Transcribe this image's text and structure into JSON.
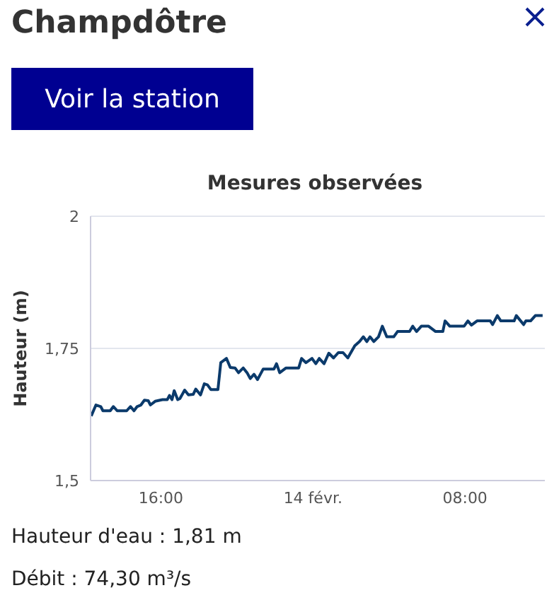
{
  "chart_data": {
    "type": "line",
    "title": "Mesures observées",
    "ylabel": "Hauteur (m)",
    "annotations": [
      "Champdôtre",
      "Voir la station",
      "Hauteur d'eau : 1,81 m",
      "Débit : 74,30 m³/s"
    ],
    "x": [
      "--02-13T12:20",
      "--02-13T12:35",
      "--02-13T12:50",
      "--02-13T12:57",
      "--02-13T13:20",
      "--02-13T13:30",
      "--02-13T13:42",
      "--02-13T14:12",
      "--02-13T14:24",
      "--02-13T14:35",
      "--02-13T14:45",
      "--02-13T14:57",
      "--02-13T15:08",
      "--02-13T15:20",
      "--02-13T15:27",
      "--02-13T15:42",
      "--02-13T16:05",
      "--02-13T16:20",
      "--02-13T16:27",
      "--02-13T16:35",
      "--02-13T16:42",
      "--02-13T16:53",
      "--02-13T17:00",
      "--02-13T17:15",
      "--02-13T17:27",
      "--02-13T17:42",
      "--02-13T17:50",
      "--02-13T18:05",
      "--02-13T18:17",
      "--02-13T18:27",
      "--02-13T18:38",
      "--02-13T19:00",
      "--02-13T19:09",
      "--02-13T19:27",
      "--02-13T19:39",
      "--02-13T19:54",
      "--02-13T20:05",
      "--02-13T20:20",
      "--02-13T20:32",
      "--02-13T20:42",
      "--02-13T20:54",
      "--02-13T21:05",
      "--02-13T21:23",
      "--02-13T21:57",
      "--02-13T22:05",
      "--02-13T22:15",
      "--02-13T22:35",
      "--02-13T23:15",
      "--02-13T23:24",
      "--02-13T23:38",
      "--02-13T23:57",
      "--02-14T00:09",
      "--02-14T00:20",
      "--02-14T00:35",
      "--02-14T00:50",
      "--02-14T01:05",
      "--02-14T01:20",
      "--02-14T01:35",
      "--02-14T01:50",
      "--02-14T02:12",
      "--02-14T02:27",
      "--02-14T02:39",
      "--02-14T02:50",
      "--02-14T03:00",
      "--02-14T03:12",
      "--02-14T03:27",
      "--02-14T03:39",
      "--02-14T03:53",
      "--02-14T04:15",
      "--02-14T04:27",
      "--02-14T05:05",
      "--02-14T05:15",
      "--02-14T05:27",
      "--02-14T05:42",
      "--02-14T06:05",
      "--02-14T06:27",
      "--02-14T06:50",
      "--02-14T06:57",
      "--02-14T07:12",
      "--02-14T07:57",
      "--02-14T08:09",
      "--02-14T08:20",
      "--02-14T08:38",
      "--02-14T09:20",
      "--02-14T09:27",
      "--02-14T09:42",
      "--02-14T09:53",
      "--02-14T10:35",
      "--02-14T10:42",
      "--02-14T11:05",
      "--02-14T11:12",
      "--02-14T11:27",
      "--02-14T11:42",
      "--02-14T12:05"
    ],
    "series": [
      {
        "color": "#0b3a6b",
        "values": [
          1.622,
          1.643,
          1.64,
          1.632,
          1.632,
          1.64,
          1.632,
          1.632,
          1.64,
          1.632,
          1.64,
          1.643,
          1.652,
          1.651,
          1.643,
          1.65,
          1.653,
          1.653,
          1.661,
          1.653,
          1.67,
          1.653,
          1.655,
          1.671,
          1.662,
          1.663,
          1.673,
          1.662,
          1.683,
          1.681,
          1.672,
          1.672,
          1.723,
          1.731,
          1.714,
          1.713,
          1.704,
          1.713,
          1.704,
          1.693,
          1.701,
          1.691,
          1.711,
          1.711,
          1.721,
          1.704,
          1.713,
          1.713,
          1.731,
          1.723,
          1.731,
          1.721,
          1.731,
          1.721,
          1.741,
          1.732,
          1.742,
          1.742,
          1.732,
          1.755,
          1.763,
          1.772,
          1.763,
          1.772,
          1.763,
          1.772,
          1.792,
          1.772,
          1.772,
          1.782,
          1.782,
          1.792,
          1.782,
          1.792,
          1.792,
          1.782,
          1.782,
          1.802,
          1.792,
          1.792,
          1.802,
          1.794,
          1.802,
          1.802,
          1.795,
          1.812,
          1.802,
          1.802,
          1.812,
          1.795,
          1.802,
          1.802,
          1.812,
          1.812
        ]
      }
    ],
    "xlim": [
      "--02-13T12:18",
      "--02-14T12:12"
    ],
    "xticks": [
      {
        "value": "--02-13T16:00",
        "label": "16:00"
      },
      {
        "value": "--02-14T00:00",
        "label": "14 févr."
      },
      {
        "value": "--02-14T08:00",
        "label": "08:00"
      }
    ],
    "ylim": [
      1.5,
      2
    ],
    "yticks": [
      {
        "value": 1.5,
        "label": "1,5"
      },
      {
        "value": 1.75,
        "label": "1,75"
      },
      {
        "value": 2,
        "label": "2"
      }
    ],
    "grid": "y",
    "marker": "none",
    "line_style": "solid",
    "legend": false
  }
}
